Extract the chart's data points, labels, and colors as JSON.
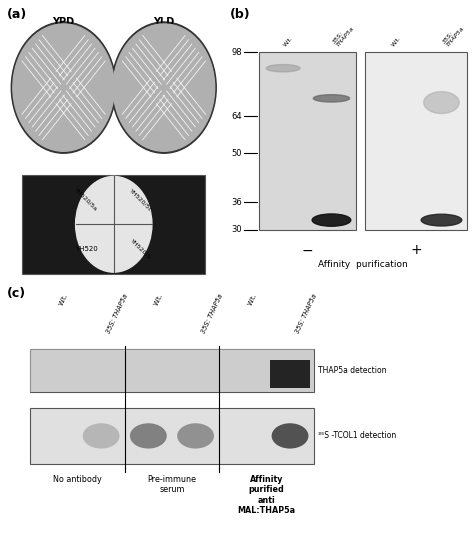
{
  "fig_width": 4.74,
  "fig_height": 5.58,
  "bg_color": "#ffffff",
  "panel_a_label": "(a)",
  "panel_b_label": "(b)",
  "panel_c_label": "(c)",
  "ypd_label": "YPD",
  "yld_label": "YLD",
  "quadrant_labels": [
    "YH520/5a",
    "YH520/5c",
    "YH520",
    "YH520/5"
  ],
  "mw_markers": [
    98,
    64,
    50,
    36,
    30
  ],
  "gel_b_col_labels": [
    "W.t.",
    "35S:THAP5a",
    "W.t.",
    "35S:THAP5a"
  ],
  "gel_b_minus_label": "−",
  "gel_b_plus_label": "+",
  "gel_b_bottom_label": "Affinity  purification",
  "gel_c_col_labels": [
    "W.t.",
    "35S:THAP5a",
    "W.t.",
    "35S:THAP5a",
    "W.t.",
    "35S:THAP5a"
  ],
  "gel_c_right_label1": "THAP5a detection",
  "gel_c_right_label2": "³⁵S -TCOL1 detection",
  "gel_c_bottom_labels": [
    "No antibody",
    "Pre-immune\nserum",
    "Affinity\npurified\nanti\nMAL:THAP5a"
  ],
  "gel_c_dividers": [
    2,
    4
  ],
  "border_color": "#888888",
  "gel_bg_light": "#e8e8e8",
  "gel_bg_right": "#f0f0f0",
  "band_dark": "#222222",
  "band_mid": "#666666",
  "band_light": "#aaaaaa"
}
